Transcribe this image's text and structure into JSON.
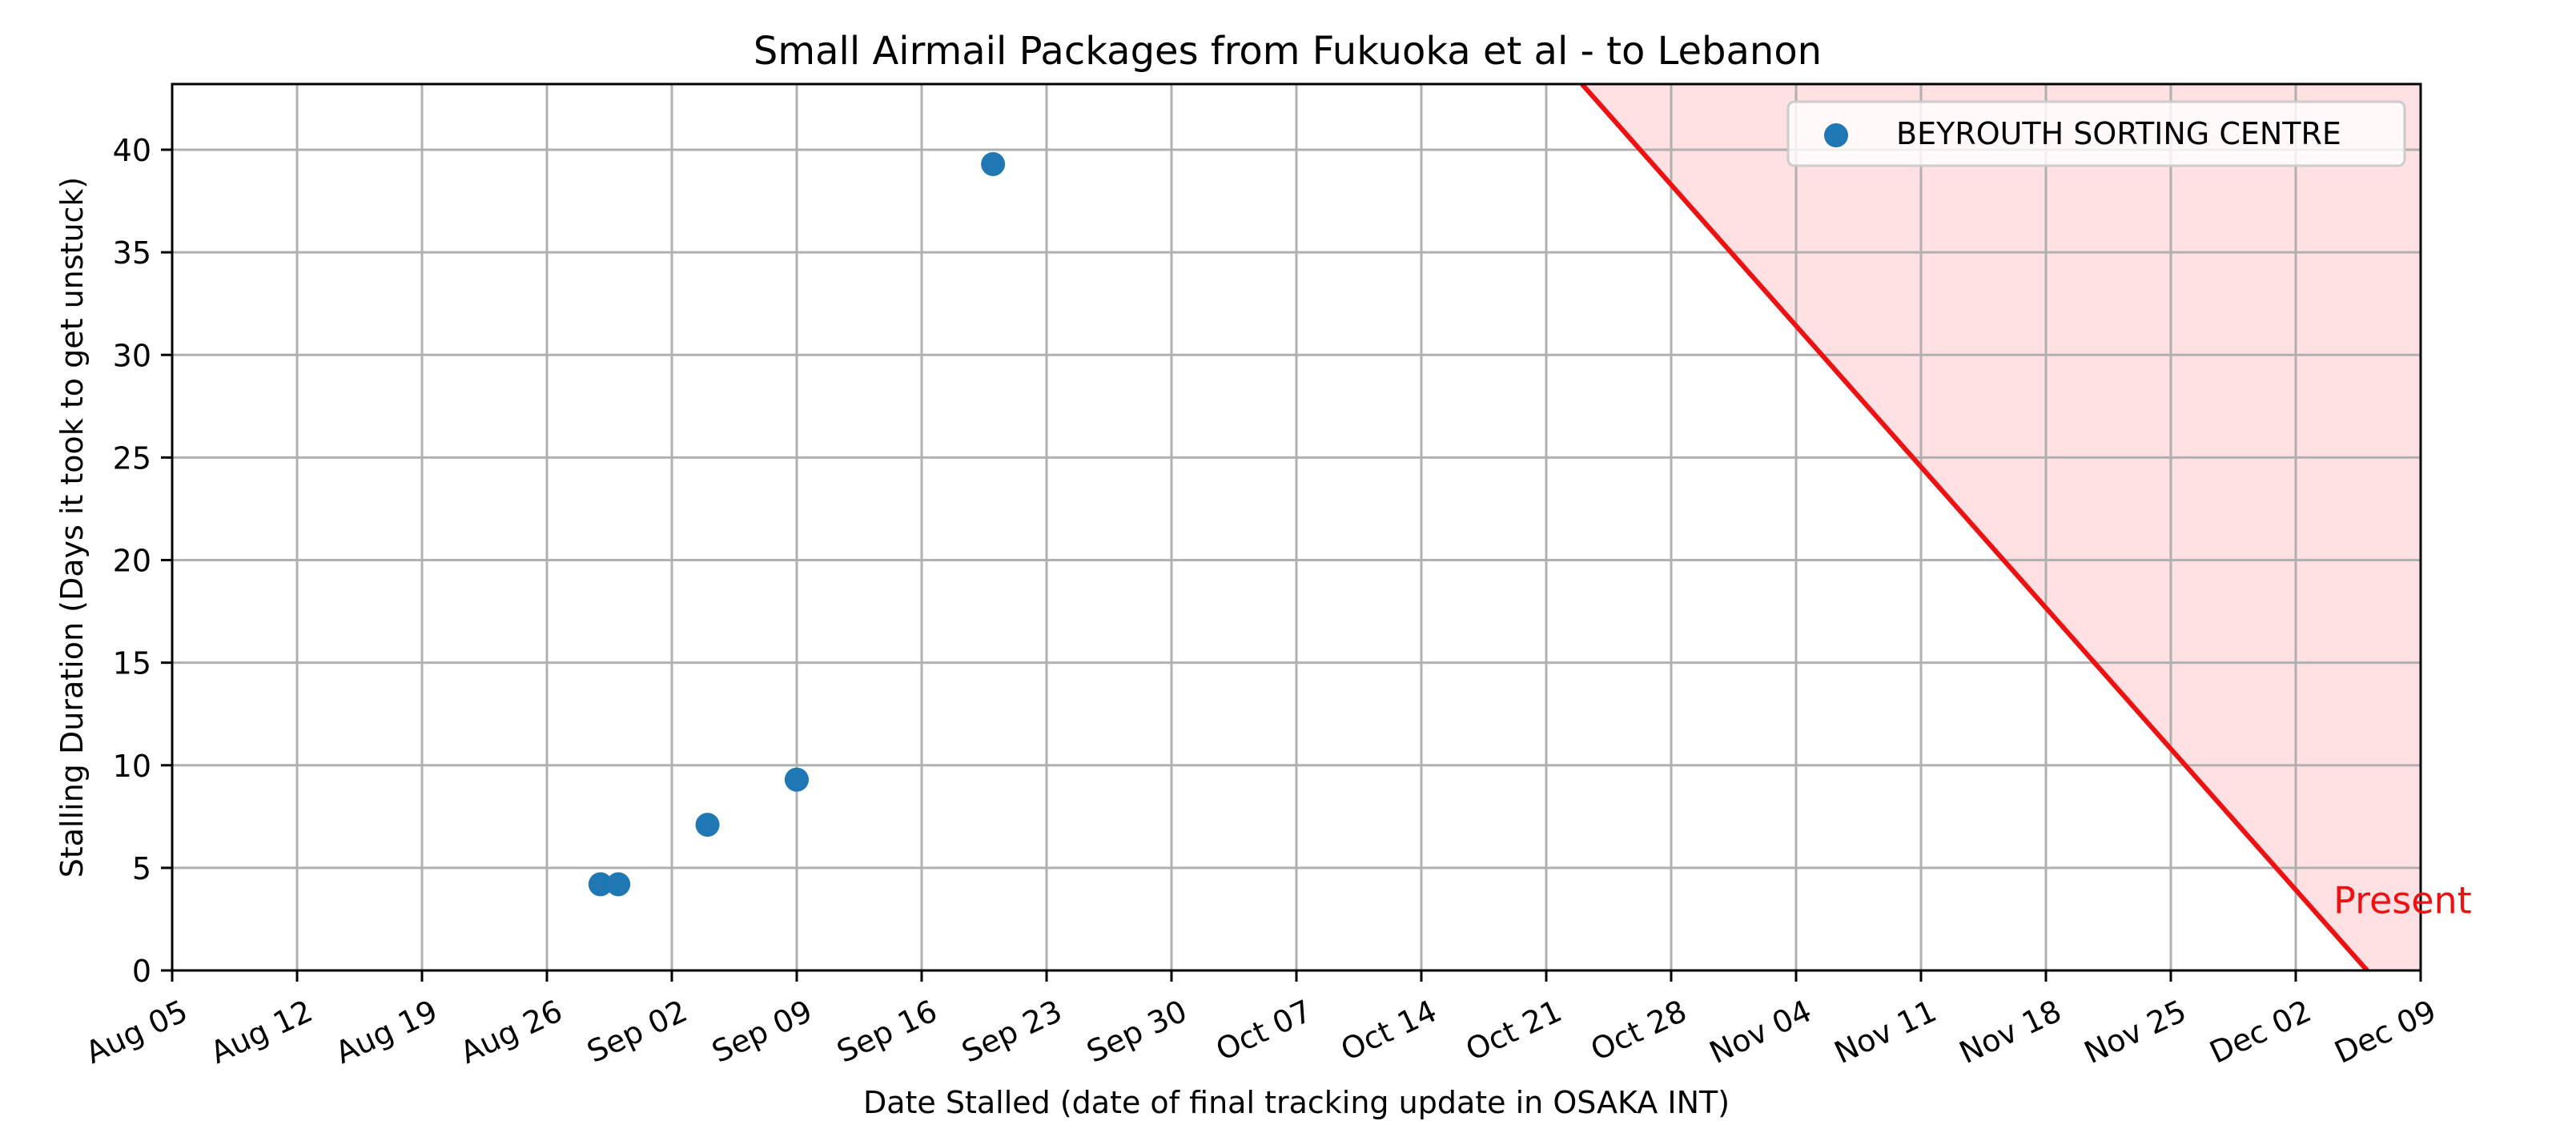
{
  "chart_data": {
    "type": "scatter",
    "title": "Small Airmail Packages from Fukuoka et al - to Lebanon",
    "xlabel": "Date Stalled (date of final tracking update in OSAKA INT)",
    "ylabel": "Stalling Duration (Days it took to get unstuck)",
    "x_ticks": [
      "Aug 05",
      "Aug 12",
      "Aug 19",
      "Aug 26",
      "Sep 02",
      "Sep 09",
      "Sep 16",
      "Sep 23",
      "Sep 30",
      "Oct 07",
      "Oct 14",
      "Oct 21",
      "Oct 28",
      "Nov 04",
      "Nov 11",
      "Nov 18",
      "Nov 25",
      "Dec 02",
      "Dec 09"
    ],
    "xlim": [
      "Aug 05",
      "Dec 09"
    ],
    "y_ticks": [
      0,
      5,
      10,
      15,
      20,
      25,
      30,
      35,
      40
    ],
    "ylim": [
      0,
      43.2
    ],
    "grid": true,
    "legend_position": "top-right",
    "series": [
      {
        "name": "BEYROUTH SORTING CENTRE",
        "color": "#1f77b4",
        "points": [
          {
            "x": "Aug 29",
            "y": 4.2
          },
          {
            "x": "Aug 30",
            "y": 4.2
          },
          {
            "x": "Sep 04",
            "y": 7.1
          },
          {
            "x": "Sep 09",
            "y": 9.3
          },
          {
            "x": "Sep 09",
            "y": 9.3
          },
          {
            "x": "Sep 20",
            "y": 39.3
          }
        ]
      }
    ],
    "present_line": {
      "label": "Present",
      "color": "#ee1111",
      "shade_color": "#ffe1e4",
      "points": [
        {
          "x": "Oct 23",
          "y": 43.2
        },
        {
          "x": "Dec 06",
          "y": 0
        }
      ]
    }
  }
}
